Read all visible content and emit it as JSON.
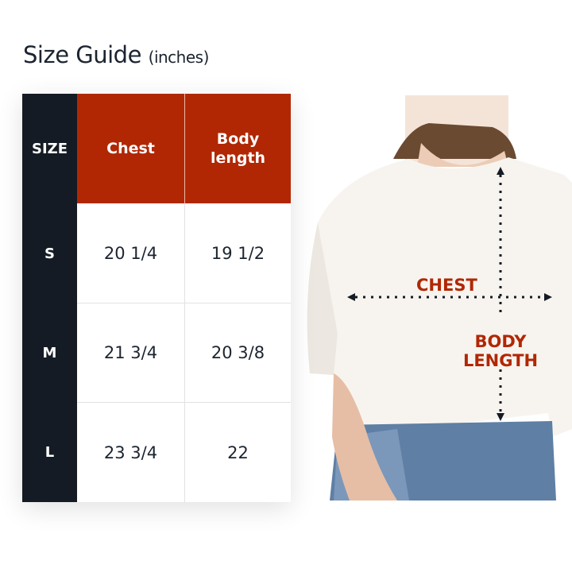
{
  "title": {
    "main": "Size Guide",
    "unit": "(inches)"
  },
  "table": {
    "headers": [
      "SIZE",
      "Chest",
      "Body length"
    ],
    "rows": [
      {
        "size": "S",
        "chest": "20 1/4",
        "length": "19 1/2"
      },
      {
        "size": "M",
        "chest": "21 3/4",
        "length": "20 3/8"
      },
      {
        "size": "L",
        "chest": "23 3/4",
        "length": "22"
      }
    ]
  },
  "diagram": {
    "chest_label": "CHEST",
    "length_label_1": "BODY",
    "length_label_2": "LENGTH"
  },
  "colors": {
    "accent": "#b12704",
    "dark": "#141b24"
  }
}
